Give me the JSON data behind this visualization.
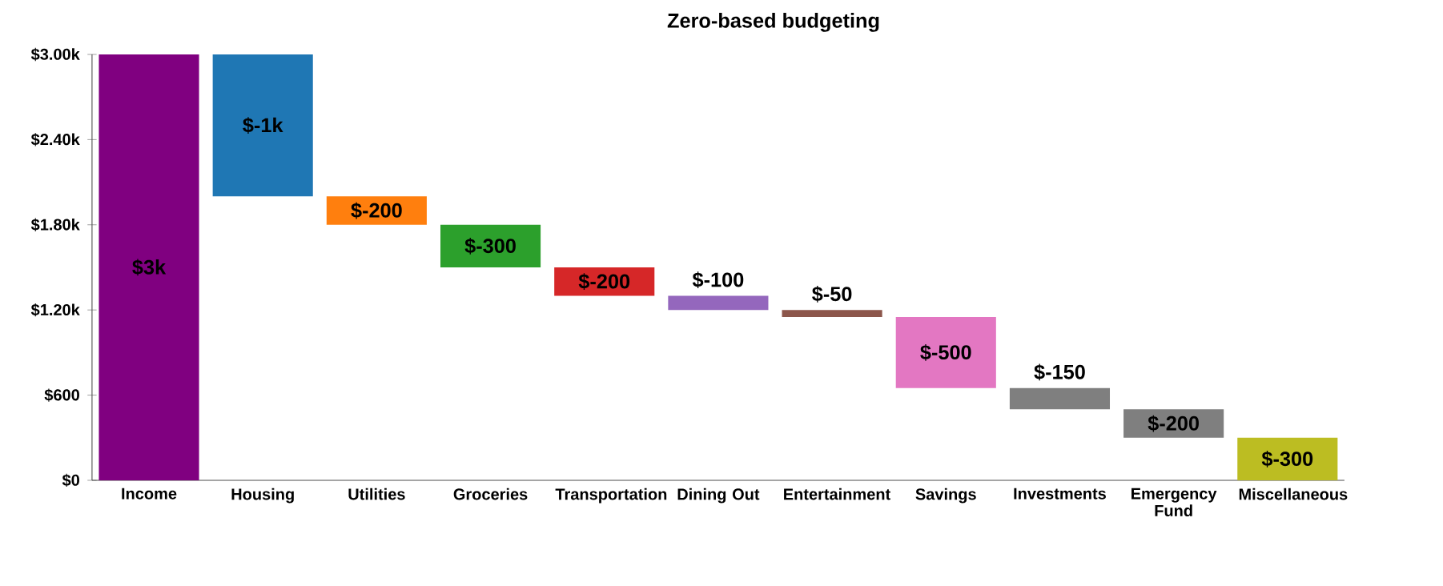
{
  "chart_data": {
    "type": "bar",
    "title": "Zero-based budgeting",
    "categories": [
      "Income",
      "Housing",
      "Utilities",
      "Groceries",
      "Transportation",
      "Dining Out",
      "Entertainment",
      "Savings",
      "Investments",
      "Emergency Fund",
      "Miscellaneous"
    ],
    "values": [
      3000,
      -1000,
      -200,
      -300,
      -200,
      -100,
      -50,
      -500,
      -150,
      -200,
      -300
    ],
    "base": [
      0,
      3000,
      2000,
      1800,
      1500,
      1300,
      1200,
      1150,
      650,
      500,
      300
    ],
    "value_labels": [
      "$3k",
      "$-1k",
      "$-200",
      "$-300",
      "$-200",
      "$-100",
      "$-50",
      "$-500",
      "$-150",
      "$-200",
      "$-300"
    ],
    "colors": [
      "#800080",
      "#1f77b4",
      "#ff7f0e",
      "#2ca02c",
      "#d62728",
      "#9467bd",
      "#8c564b",
      "#e377c2",
      "#7f7f7f",
      "#7f7f7f",
      "#bcbd22"
    ],
    "ylim": [
      0,
      3000
    ],
    "yticks": [
      {
        "value": 0,
        "label": "$0"
      },
      {
        "value": 600,
        "label": "$600"
      },
      {
        "value": 1200,
        "label": "$1.20k"
      },
      {
        "value": 1800,
        "label": "$1.80k"
      },
      {
        "value": 2400,
        "label": "$2.40k"
      },
      {
        "value": 3000,
        "label": "$3.00k"
      }
    ]
  }
}
